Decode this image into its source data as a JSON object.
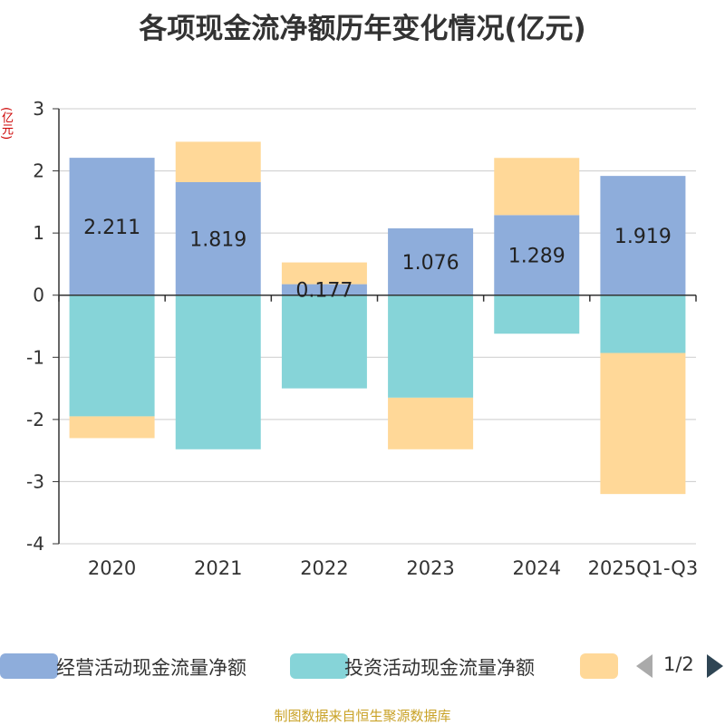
{
  "title": "各项现金流净额历年变化情况(亿元)",
  "unit": "(亿元)",
  "source": "制图数据来自恒生聚源数据库",
  "pager": "1/2",
  "colors": {
    "operating": "#8eaddb",
    "investing": "#86d4d8",
    "financing": "#ffd898",
    "grid": "#cccccc",
    "axis": "#333333"
  },
  "legend": [
    {
      "label": "经营活动现金流量净额",
      "color": "#8eaddb"
    },
    {
      "label": "投资活动现金流量净额",
      "color": "#86d4d8"
    },
    {
      "label": "",
      "color": "#ffd898"
    }
  ],
  "chart_data": {
    "type": "bar",
    "stacked": true,
    "title": "各项现金流净额历年变化情况(亿元)",
    "ylabel": "(亿元)",
    "ylim": [
      -4,
      3
    ],
    "yticks": [
      3,
      2,
      1,
      0,
      -1,
      -2,
      -3,
      -4
    ],
    "grid": true,
    "categories": [
      "2020",
      "2021",
      "2022",
      "2023",
      "2024",
      "2025Q1-Q3"
    ],
    "series": [
      {
        "name": "经营活动现金流量净额",
        "values": [
          2.211,
          1.819,
          0.177,
          1.076,
          1.289,
          1.919
        ],
        "labels": [
          "2.211",
          "1.819",
          "0.177",
          "1.076",
          "1.289",
          "1.919"
        ]
      },
      {
        "name": "投资活动现金流量净额",
        "values": [
          -1.95,
          -2.48,
          -1.5,
          -1.65,
          -0.62,
          -0.93
        ]
      },
      {
        "name": "",
        "values": [
          -0.35,
          0.65,
          0.35,
          -0.83,
          0.92,
          -2.27
        ]
      }
    ]
  }
}
